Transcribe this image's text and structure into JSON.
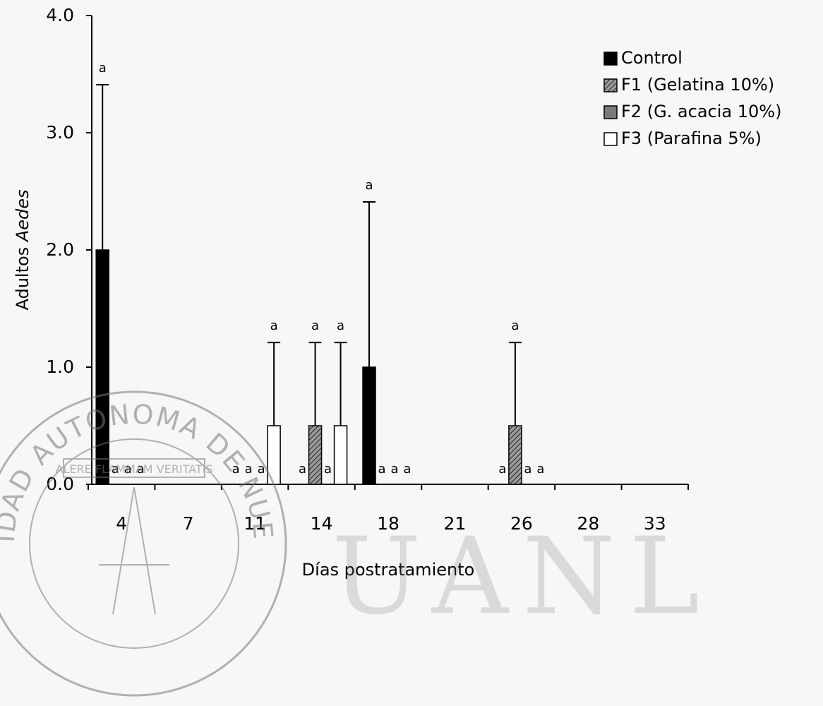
{
  "chart_data": {
    "type": "bar",
    "xlabel": "Días postratamiento",
    "ylabel": "Adultos Aedes",
    "ylabel_parts": [
      "Adultos ",
      "Aedes"
    ],
    "ylim": [
      0,
      4.0
    ],
    "yticks": [
      "0.0",
      "1.0",
      "2.0",
      "3.0",
      "4.0"
    ],
    "categories": [
      "4",
      "7",
      "11",
      "14",
      "18",
      "21",
      "26",
      "28",
      "33"
    ],
    "grid": false,
    "legend_position": "top-right",
    "series": [
      {
        "name": "Control",
        "fill": "solid",
        "values": [
          2.0,
          0,
          0,
          0,
          1.0,
          0,
          0,
          0,
          0
        ],
        "errors": [
          1.41,
          null,
          null,
          null,
          1.41,
          null,
          null,
          null,
          null
        ],
        "letters": [
          "a",
          "",
          "a",
          "a",
          "a",
          "",
          "a",
          "",
          ""
        ]
      },
      {
        "name": "F1 (Gelatina 10%)",
        "fill": "hatch",
        "values": [
          0,
          0,
          0,
          0.5,
          0,
          0,
          0.5,
          0,
          0
        ],
        "errors": [
          null,
          null,
          null,
          0.71,
          null,
          null,
          0.71,
          null,
          null
        ],
        "letters": [
          "a",
          "",
          "a",
          "a",
          "a",
          "",
          "a",
          "",
          ""
        ]
      },
      {
        "name": "F2 (G. acacia 10%)",
        "fill": "gray",
        "values": [
          0,
          0,
          0,
          0,
          0,
          0,
          0,
          0,
          0
        ],
        "errors": [
          null,
          null,
          null,
          null,
          null,
          null,
          null,
          null,
          null
        ],
        "letters": [
          "a",
          "",
          "a",
          "a",
          "a",
          "",
          "a",
          "",
          ""
        ]
      },
      {
        "name": "F3 (Parafina 5%)",
        "fill": "white",
        "values": [
          0,
          0,
          0.5,
          0.5,
          0,
          0,
          0,
          0,
          0
        ],
        "errors": [
          null,
          null,
          0.71,
          0.71,
          null,
          null,
          null,
          null,
          null
        ],
        "letters": [
          "a",
          "",
          "a",
          "a",
          "a",
          "",
          "a",
          "",
          ""
        ]
      }
    ]
  },
  "watermark": {
    "seal_text": "UNIVERSIDAD AUTONOMA DE NUEVO LEON",
    "motto": "ALERE FLAMMAM VERITATIS",
    "big_text": "UANL"
  }
}
